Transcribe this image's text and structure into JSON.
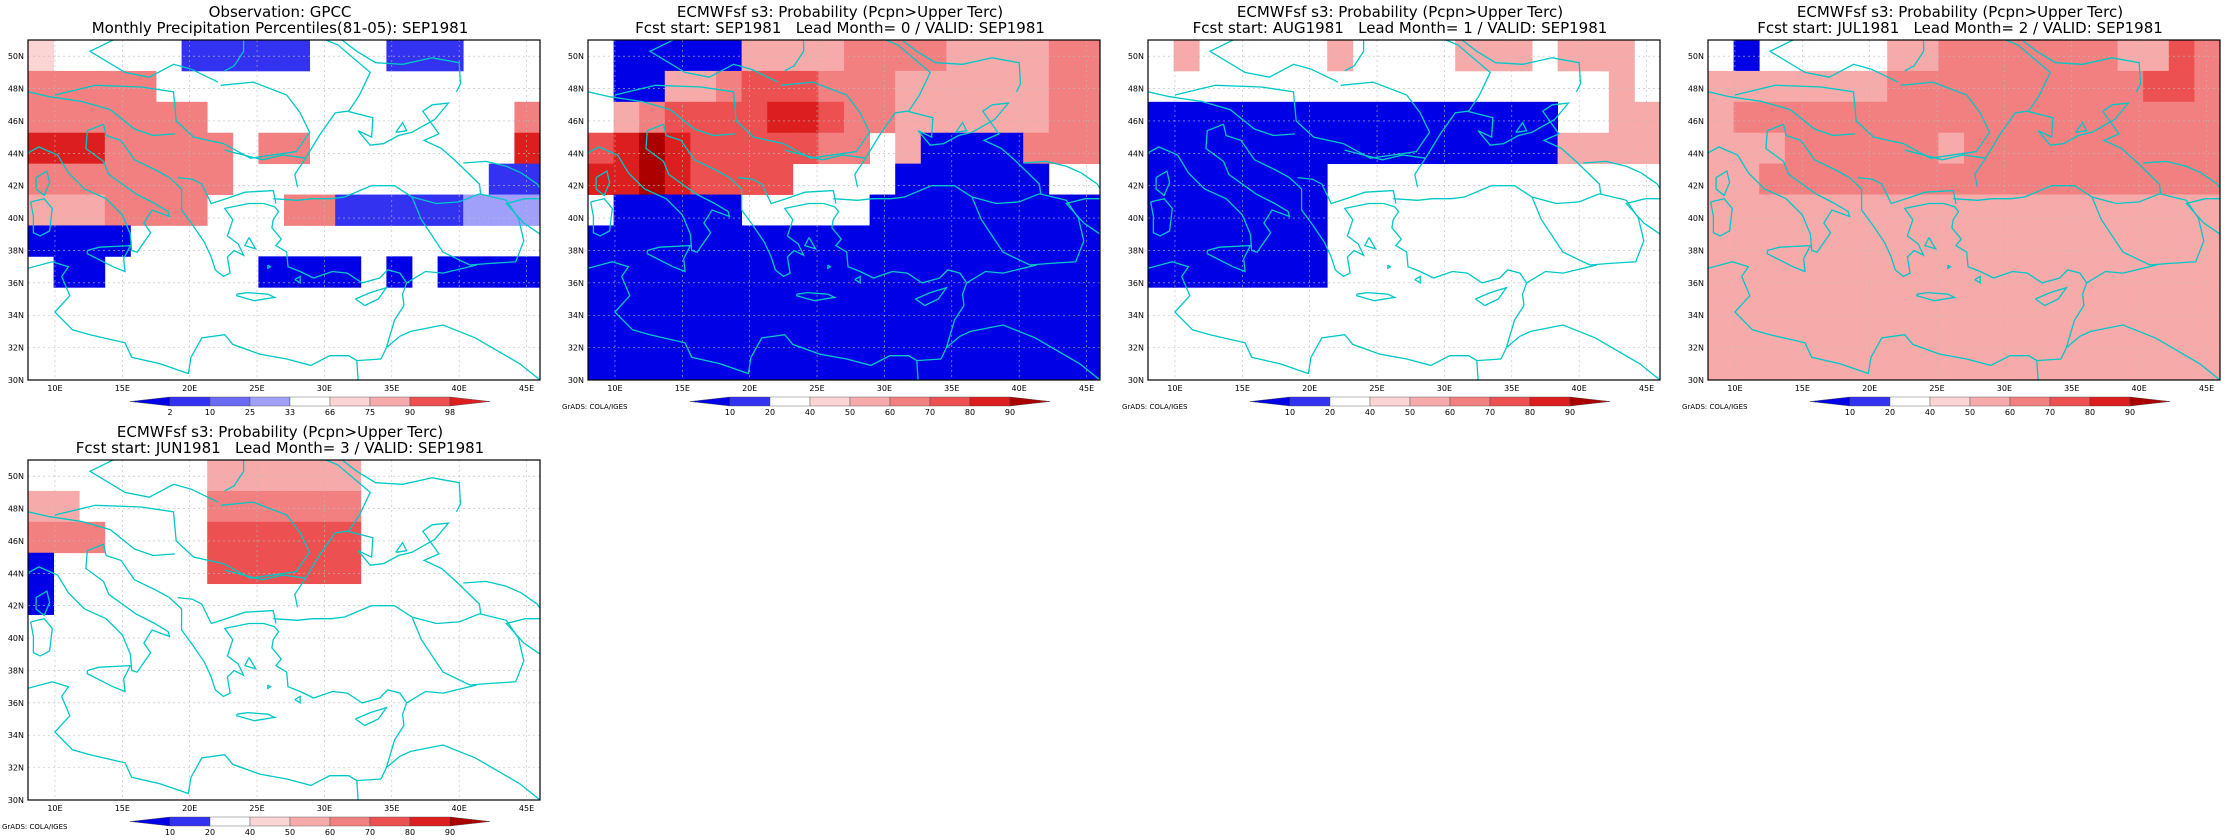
{
  "colors": {
    "coast": "#00c8c8",
    "frame": "#000000",
    "grid": "#bbbbbb",
    "blue_scale": [
      "#0000e6",
      "#3232f0",
      "#6a6af5",
      "#a0a0fa",
      "#c8c8fc"
    ],
    "red_scale": [
      "#fbd4d4",
      "#f7aaaa",
      "#f28080",
      "#ec5050",
      "#dc1e1e",
      "#aa0000"
    ]
  },
  "axes": {
    "lat_labels": [
      "50N",
      "48N",
      "46N",
      "44N",
      "42N",
      "40N",
      "38N",
      "36N",
      "34N",
      "32N",
      "30N"
    ],
    "lon_labels": [
      "10E",
      "15E",
      "20E",
      "25E",
      "30E",
      "35E",
      "40E",
      "45E"
    ]
  },
  "panels": [
    {
      "id": "obs",
      "title_line1": "Observation: GPCC",
      "title_line2": "Monthly Precipitation Percentiles(81-05): SEP1981",
      "colorbar_labels": [
        "2",
        "10",
        "25",
        "33",
        "66",
        "75",
        "90",
        "98"
      ],
      "credit": "",
      "grid_levels": [
        [
          7,
          0,
          0,
          0,
          0,
          0,
          2,
          2,
          2,
          2,
          2,
          0,
          0,
          0,
          2,
          2,
          2,
          0,
          0,
          0
        ],
        [
          9,
          9,
          9,
          9,
          9,
          0,
          0,
          0,
          0,
          0,
          0,
          0,
          0,
          0,
          0,
          0,
          0,
          0,
          0,
          0
        ],
        [
          9,
          9,
          9,
          9,
          9,
          9,
          9,
          0,
          0,
          0,
          0,
          0,
          0,
          0,
          0,
          0,
          0,
          0,
          0,
          9
        ],
        [
          10,
          10,
          10,
          9,
          9,
          9,
          9,
          9,
          0,
          9,
          9,
          0,
          0,
          0,
          0,
          0,
          0,
          0,
          0,
          10
        ],
        [
          9,
          9,
          9,
          9,
          9,
          9,
          9,
          9,
          0,
          0,
          0,
          0,
          0,
          0,
          0,
          0,
          0,
          0,
          2,
          2
        ],
        [
          8,
          8,
          8,
          9,
          9,
          9,
          9,
          0,
          0,
          0,
          9,
          9,
          2,
          2,
          2,
          2,
          2,
          3,
          3,
          3
        ],
        [
          1,
          1,
          1,
          1,
          0,
          0,
          0,
          0,
          0,
          0,
          0,
          0,
          0,
          0,
          0,
          0,
          0,
          0,
          0,
          0
        ],
        [
          0,
          1,
          1,
          0,
          0,
          0,
          0,
          0,
          0,
          1,
          1,
          1,
          1,
          0,
          1,
          0,
          1,
          1,
          1,
          1
        ],
        [
          0,
          0,
          0,
          0,
          0,
          0,
          0,
          0,
          0,
          0,
          0,
          0,
          0,
          0,
          0,
          0,
          0,
          0,
          0,
          0
        ],
        [
          0,
          0,
          0,
          0,
          0,
          0,
          0,
          0,
          0,
          0,
          0,
          0,
          0,
          0,
          0,
          0,
          0,
          0,
          0,
          0
        ],
        [
          0,
          0,
          0,
          0,
          0,
          0,
          0,
          0,
          0,
          0,
          0,
          0,
          0,
          0,
          0,
          0,
          0,
          0,
          0,
          0
        ]
      ]
    },
    {
      "id": "lead0",
      "title_line1": "ECMWFsf s3: Probability (Pcpn>Upper Terc)",
      "title_line2": "Fcst start: SEP1981   Lead Month= 0 / VALID: SEP1981",
      "colorbar_labels": [
        "10",
        "20",
        "40",
        "50",
        "60",
        "70",
        "80",
        "90"
      ],
      "credit": "GrADS: COLA/IGES",
      "grid_levels": [
        [
          0,
          1,
          1,
          1,
          1,
          1,
          2,
          2,
          2,
          2,
          3,
          3,
          3,
          3,
          2,
          2,
          2,
          2,
          3,
          3
        ],
        [
          0,
          1,
          1,
          2,
          2,
          3,
          4,
          4,
          4,
          3,
          3,
          3,
          2,
          2,
          2,
          2,
          2,
          2,
          3,
          3
        ],
        [
          0,
          2,
          3,
          4,
          4,
          4,
          4,
          5,
          5,
          4,
          3,
          3,
          2,
          2,
          2,
          2,
          2,
          2,
          3,
          3
        ],
        [
          4,
          5,
          6,
          5,
          4,
          4,
          4,
          4,
          4,
          3,
          3,
          0,
          2,
          1,
          1,
          1,
          1,
          3,
          3,
          3
        ],
        [
          5,
          5,
          6,
          5,
          4,
          4,
          4,
          4,
          0,
          0,
          0,
          0,
          1,
          1,
          1,
          1,
          1,
          1,
          0,
          0
        ],
        [
          0,
          1,
          1,
          1,
          1,
          1,
          0,
          0,
          0,
          0,
          0,
          1,
          1,
          1,
          1,
          1,
          1,
          1,
          1,
          1
        ],
        [
          1,
          1,
          1,
          1,
          1,
          1,
          1,
          1,
          1,
          1,
          1,
          1,
          1,
          1,
          1,
          1,
          1,
          1,
          1,
          1
        ],
        [
          1,
          1,
          1,
          1,
          1,
          1,
          1,
          1,
          1,
          1,
          1,
          1,
          1,
          1,
          1,
          1,
          1,
          1,
          1,
          1
        ],
        [
          1,
          1,
          1,
          1,
          1,
          1,
          1,
          1,
          1,
          1,
          1,
          1,
          1,
          1,
          1,
          1,
          1,
          1,
          1,
          1
        ],
        [
          1,
          1,
          1,
          1,
          1,
          1,
          1,
          1,
          1,
          1,
          1,
          1,
          1,
          1,
          1,
          1,
          1,
          1,
          1,
          1
        ],
        [
          1,
          1,
          1,
          1,
          1,
          1,
          1,
          1,
          1,
          1,
          1,
          1,
          1,
          1,
          1,
          1,
          1,
          1,
          1,
          1
        ]
      ]
    },
    {
      "id": "lead1",
      "title_line1": "ECMWFsf s3: Probability (Pcpn>Upper Terc)",
      "title_line2": "Fcst start: AUG1981   Lead Month= 1 / VALID: SEP1981",
      "colorbar_labels": [
        "10",
        "20",
        "40",
        "50",
        "60",
        "70",
        "80",
        "90"
      ],
      "credit": "GrADS: COLA/IGES",
      "grid_levels": [
        [
          0,
          2,
          0,
          0,
          0,
          0,
          0,
          2,
          0,
          0,
          0,
          0,
          2,
          2,
          2,
          0,
          2,
          2,
          2,
          0
        ],
        [
          0,
          0,
          0,
          0,
          0,
          0,
          0,
          0,
          0,
          0,
          0,
          0,
          0,
          0,
          0,
          0,
          0,
          0,
          2,
          0
        ],
        [
          1,
          1,
          1,
          1,
          1,
          1,
          1,
          1,
          1,
          1,
          1,
          1,
          1,
          1,
          1,
          1,
          0,
          0,
          2,
          2
        ],
        [
          1,
          1,
          1,
          1,
          1,
          1,
          1,
          1,
          1,
          1,
          1,
          1,
          1,
          1,
          1,
          1,
          2,
          2,
          2,
          2
        ],
        [
          1,
          1,
          1,
          1,
          1,
          1,
          1,
          0,
          0,
          0,
          0,
          0,
          0,
          0,
          0,
          0,
          0,
          0,
          0,
          0
        ],
        [
          1,
          1,
          1,
          1,
          1,
          1,
          1,
          0,
          0,
          0,
          0,
          0,
          0,
          0,
          0,
          0,
          0,
          0,
          0,
          0
        ],
        [
          1,
          1,
          1,
          1,
          1,
          1,
          1,
          0,
          0,
          0,
          0,
          0,
          0,
          0,
          0,
          0,
          0,
          0,
          0,
          0
        ],
        [
          1,
          1,
          1,
          1,
          1,
          1,
          1,
          0,
          0,
          0,
          0,
          0,
          0,
          0,
          0,
          0,
          0,
          0,
          0,
          0
        ],
        [
          0,
          0,
          0,
          0,
          0,
          0,
          0,
          0,
          0,
          0,
          0,
          0,
          0,
          0,
          0,
          0,
          0,
          0,
          0,
          0
        ],
        [
          0,
          0,
          0,
          0,
          0,
          0,
          0,
          0,
          0,
          0,
          0,
          0,
          0,
          0,
          0,
          0,
          0,
          0,
          0,
          0
        ],
        [
          0,
          0,
          0,
          0,
          0,
          0,
          0,
          0,
          0,
          0,
          0,
          0,
          0,
          0,
          0,
          0,
          0,
          0,
          0,
          0
        ]
      ]
    },
    {
      "id": "lead2",
      "title_line1": "ECMWFsf s3: Probability (Pcpn>Upper Terc)",
      "title_line2": "Fcst start: JUL1981   Lead Month= 2 / VALID: SEP1981",
      "colorbar_labels": [
        "10",
        "20",
        "40",
        "50",
        "60",
        "70",
        "80",
        "90"
      ],
      "credit": "GrADS: COLA/IGES",
      "grid_levels": [
        [
          0,
          1,
          0,
          0,
          0,
          0,
          0,
          2,
          2,
          3,
          3,
          3,
          3,
          3,
          3,
          3,
          2,
          2,
          4,
          3
        ],
        [
          2,
          2,
          2,
          2,
          2,
          2,
          2,
          3,
          3,
          3,
          3,
          3,
          3,
          3,
          3,
          3,
          3,
          4,
          4,
          3
        ],
        [
          2,
          3,
          3,
          3,
          3,
          3,
          3,
          3,
          3,
          3,
          3,
          3,
          3,
          3,
          3,
          3,
          3,
          3,
          3,
          3
        ],
        [
          2,
          2,
          2,
          3,
          3,
          3,
          3,
          3,
          3,
          2,
          3,
          3,
          3,
          3,
          3,
          3,
          3,
          3,
          3,
          3
        ],
        [
          2,
          2,
          3,
          3,
          3,
          3,
          3,
          3,
          3,
          3,
          3,
          3,
          3,
          3,
          3,
          3,
          3,
          3,
          3,
          3
        ],
        [
          2,
          2,
          2,
          2,
          2,
          2,
          2,
          2,
          2,
          2,
          2,
          2,
          2,
          2,
          2,
          2,
          2,
          2,
          2,
          2
        ],
        [
          2,
          2,
          2,
          2,
          2,
          2,
          2,
          2,
          2,
          2,
          2,
          2,
          2,
          2,
          2,
          2,
          2,
          2,
          2,
          2
        ],
        [
          2,
          2,
          2,
          2,
          2,
          2,
          2,
          2,
          2,
          2,
          2,
          2,
          2,
          2,
          2,
          2,
          2,
          2,
          2,
          2
        ],
        [
          2,
          2,
          2,
          2,
          2,
          2,
          2,
          2,
          2,
          2,
          2,
          2,
          2,
          2,
          2,
          2,
          2,
          2,
          2,
          2
        ],
        [
          2,
          2,
          2,
          2,
          2,
          2,
          2,
          2,
          2,
          2,
          2,
          2,
          2,
          2,
          2,
          2,
          2,
          2,
          2,
          2
        ],
        [
          2,
          2,
          2,
          2,
          2,
          2,
          2,
          2,
          2,
          2,
          2,
          2,
          2,
          2,
          2,
          2,
          2,
          2,
          2,
          2
        ]
      ]
    },
    {
      "id": "lead3",
      "title_line1": "ECMWFsf s3: Probability (Pcpn>Upper Terc)",
      "title_line2": "Fcst start: JUN1981   Lead Month= 3 / VALID: SEP1981",
      "colorbar_labels": [
        "10",
        "20",
        "40",
        "50",
        "60",
        "70",
        "80",
        "90"
      ],
      "credit": "GrADS: COLA/IGES",
      "grid_levels": [
        [
          0,
          0,
          0,
          0,
          0,
          0,
          0,
          2,
          2,
          2,
          2,
          2,
          2,
          0,
          0,
          0,
          0,
          0,
          0,
          0
        ],
        [
          2,
          2,
          0,
          0,
          0,
          0,
          0,
          3,
          3,
          3,
          3,
          3,
          3,
          0,
          0,
          0,
          0,
          0,
          0,
          0
        ],
        [
          3,
          3,
          3,
          0,
          0,
          0,
          0,
          4,
          4,
          4,
          4,
          4,
          4,
          0,
          0,
          0,
          0,
          0,
          0,
          0
        ],
        [
          1,
          0,
          0,
          0,
          0,
          0,
          0,
          4,
          4,
          4,
          4,
          4,
          4,
          0,
          0,
          0,
          0,
          0,
          0,
          0
        ],
        [
          1,
          0,
          0,
          0,
          0,
          0,
          0,
          0,
          0,
          0,
          0,
          0,
          0,
          0,
          0,
          0,
          0,
          0,
          0,
          0
        ],
        [
          0,
          0,
          0,
          0,
          0,
          0,
          0,
          0,
          0,
          0,
          0,
          0,
          0,
          0,
          0,
          0,
          0,
          0,
          0,
          0
        ],
        [
          0,
          0,
          0,
          0,
          0,
          0,
          0,
          0,
          0,
          0,
          0,
          0,
          0,
          0,
          0,
          0,
          0,
          0,
          0,
          0
        ],
        [
          0,
          0,
          0,
          0,
          0,
          0,
          0,
          0,
          0,
          0,
          0,
          0,
          0,
          0,
          0,
          0,
          0,
          0,
          0,
          0
        ],
        [
          0,
          0,
          0,
          0,
          0,
          0,
          0,
          0,
          0,
          0,
          0,
          0,
          0,
          0,
          0,
          0,
          0,
          0,
          0,
          0
        ],
        [
          0,
          0,
          0,
          0,
          0,
          0,
          0,
          0,
          0,
          0,
          0,
          0,
          0,
          0,
          0,
          0,
          0,
          0,
          0,
          0
        ],
        [
          0,
          0,
          0,
          0,
          0,
          0,
          0,
          0,
          0,
          0,
          0,
          0,
          0,
          0,
          0,
          0,
          0,
          0,
          0,
          0
        ]
      ]
    }
  ]
}
